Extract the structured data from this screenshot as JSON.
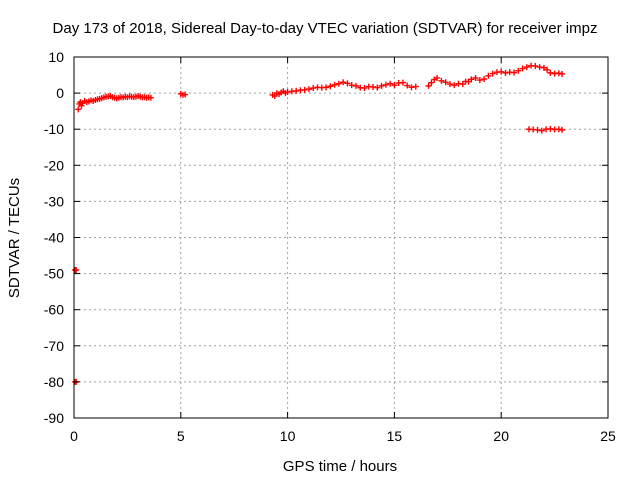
{
  "chart_data": {
    "type": "scatter",
    "title": "Day 173 of 2018, Sidereal Day-to-day VTEC variation (SDTVAR) for receiver impz",
    "xlabel": "GPS time / hours",
    "ylabel": "SDTVAR / TECUs",
    "xlim": [
      0,
      25
    ],
    "ylim": [
      -90,
      10
    ],
    "xticks": [
      0,
      5,
      10,
      15,
      20,
      25
    ],
    "yticks": [
      10,
      0,
      -10,
      -20,
      -30,
      -40,
      -50,
      -60,
      -70,
      -80,
      -90
    ],
    "grid": true,
    "marker": "plus",
    "colors": {
      "series": "#ff0000",
      "grid": "#a0a0a0",
      "axis": "#000000"
    },
    "series": [
      {
        "name": "SDTVAR",
        "points": [
          [
            0.05,
            -49
          ],
          [
            0.1,
            -49
          ],
          [
            0.05,
            -80
          ],
          [
            0.1,
            -80
          ],
          [
            0.2,
            -4.5
          ],
          [
            0.25,
            -3
          ],
          [
            0.3,
            -2.5
          ],
          [
            0.35,
            -3.5
          ],
          [
            0.4,
            -2.8
          ],
          [
            0.5,
            -2.2
          ],
          [
            0.6,
            -2.5
          ],
          [
            0.7,
            -2.3
          ],
          [
            0.8,
            -2.0
          ],
          [
            0.9,
            -2.2
          ],
          [
            1.0,
            -1.9
          ],
          [
            1.1,
            -1.7
          ],
          [
            1.2,
            -1.6
          ],
          [
            1.3,
            -1.4
          ],
          [
            1.4,
            -1.2
          ],
          [
            1.5,
            -1.0
          ],
          [
            1.6,
            -0.9
          ],
          [
            1.7,
            -0.8
          ],
          [
            1.8,
            -1.1
          ],
          [
            1.9,
            -1.3
          ],
          [
            2.0,
            -1.5
          ],
          [
            2.1,
            -1.3
          ],
          [
            2.2,
            -1.1
          ],
          [
            2.3,
            -1.2
          ],
          [
            2.4,
            -1.0
          ],
          [
            2.5,
            -1.1
          ],
          [
            2.6,
            -0.9
          ],
          [
            2.7,
            -1.0
          ],
          [
            2.8,
            -1.1
          ],
          [
            2.9,
            -1.0
          ],
          [
            3.0,
            -0.8
          ],
          [
            3.1,
            -1.0
          ],
          [
            3.2,
            -1.2
          ],
          [
            3.3,
            -1.1
          ],
          [
            3.4,
            -1.3
          ],
          [
            3.5,
            -1.2
          ],
          [
            3.6,
            -1.3
          ],
          [
            5.0,
            -0.2
          ],
          [
            5.1,
            -0.5
          ],
          [
            5.2,
            -0.4
          ],
          [
            9.3,
            -0.5
          ],
          [
            9.4,
            -0.8
          ],
          [
            9.5,
            0.0
          ],
          [
            9.6,
            -0.3
          ],
          [
            9.7,
            0.2
          ],
          [
            9.8,
            0.5
          ],
          [
            9.9,
            0.0
          ],
          [
            10.0,
            0.3
          ],
          [
            10.2,
            0.5
          ],
          [
            10.4,
            0.6
          ],
          [
            10.6,
            0.8
          ],
          [
            10.8,
            0.9
          ],
          [
            11.0,
            1.1
          ],
          [
            11.2,
            1.4
          ],
          [
            11.4,
            1.6
          ],
          [
            11.6,
            1.5
          ],
          [
            11.8,
            1.6
          ],
          [
            12.0,
            1.9
          ],
          [
            12.2,
            2.3
          ],
          [
            12.4,
            2.6
          ],
          [
            12.6,
            3.0
          ],
          [
            12.8,
            2.7
          ],
          [
            13.0,
            2.2
          ],
          [
            13.2,
            2.0
          ],
          [
            13.4,
            1.5
          ],
          [
            13.6,
            1.4
          ],
          [
            13.8,
            1.8
          ],
          [
            14.0,
            1.7
          ],
          [
            14.2,
            1.5
          ],
          [
            14.4,
            2.0
          ],
          [
            14.6,
            2.3
          ],
          [
            14.8,
            2.6
          ],
          [
            15.0,
            2.2
          ],
          [
            15.2,
            2.8
          ],
          [
            15.4,
            2.9
          ],
          [
            15.6,
            2.1
          ],
          [
            15.8,
            1.6
          ],
          [
            16.0,
            1.8
          ],
          [
            16.6,
            2.0
          ],
          [
            17.0,
            4.2
          ],
          [
            17.2,
            3.4
          ],
          [
            17.4,
            3.0
          ],
          [
            17.6,
            2.5
          ],
          [
            17.8,
            2.2
          ],
          [
            18.0,
            2.6
          ],
          [
            18.2,
            2.5
          ],
          [
            18.6,
            3.8
          ],
          [
            18.8,
            4.2
          ],
          [
            19.0,
            3.6
          ],
          [
            19.2,
            3.9
          ],
          [
            19.4,
            4.8
          ],
          [
            19.6,
            5.4
          ],
          [
            19.8,
            5.8
          ],
          [
            20.0,
            5.9
          ],
          [
            20.2,
            5.6
          ],
          [
            20.4,
            5.8
          ],
          [
            20.6,
            5.7
          ],
          [
            20.8,
            6.2
          ],
          [
            21.0,
            6.8
          ],
          [
            21.2,
            7.2
          ],
          [
            21.4,
            7.6
          ],
          [
            21.6,
            7.5
          ],
          [
            21.8,
            7.2
          ],
          [
            22.0,
            7.0
          ],
          [
            22.3,
            5.6
          ],
          [
            22.5,
            5.4
          ],
          [
            22.7,
            5.5
          ],
          [
            22.85,
            5.3
          ],
          [
            21.3,
            -10.0
          ],
          [
            21.5,
            -10.1
          ],
          [
            21.7,
            -10.2
          ],
          [
            21.9,
            -10.4
          ],
          [
            22.1,
            -10.0
          ],
          [
            22.3,
            -9.9
          ],
          [
            22.5,
            -10.1
          ],
          [
            22.7,
            -10.0
          ],
          [
            22.85,
            -10.2
          ]
        ]
      }
    ]
  }
}
